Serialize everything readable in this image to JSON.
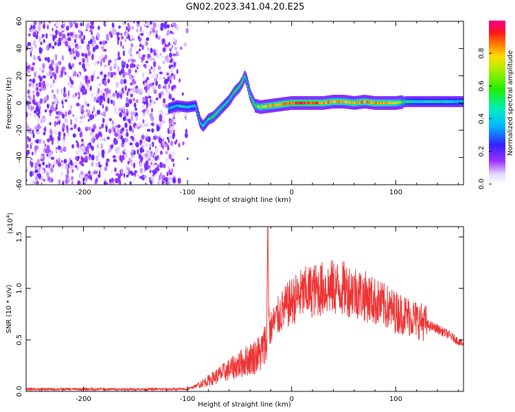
{
  "title": "GN02.2023.341.04.20.E25",
  "chart_data": [
    {
      "type": "heatmap",
      "title": "GN02.2023.341.04.20.E25",
      "xlabel": "Height of straight line (km)",
      "ylabel": "Frequency (Hz)",
      "xlim": [
        -255,
        165
      ],
      "ylim": [
        -60,
        60
      ],
      "xticks": [
        -200,
        -100,
        0,
        100
      ],
      "yticks": [
        -60,
        -40,
        -20,
        0,
        20,
        40,
        60
      ],
      "grid": false,
      "colorbar": {
        "label": "Normalized spectral amplitude",
        "range": [
          0.0,
          1.0
        ],
        "ticks": [
          0.0,
          0.2,
          0.4,
          0.6,
          0.8
        ],
        "colormap": "white-purple-blue-cyan-green-yellow-orange-red-magenta"
      },
      "regions": [
        {
          "description": "broadband noise",
          "x_range": [
            -255,
            -110
          ],
          "freq_range": [
            -60,
            60
          ],
          "amplitude": 0.1
        },
        {
          "description": "signal ridge",
          "x_range": [
            -112,
            165
          ],
          "amplitude": [
            0.3,
            0.95
          ]
        }
      ],
      "ridge": {
        "x": [
          -118,
          -110,
          -100,
          -92,
          -88,
          -85,
          -80,
          -75,
          -70,
          -65,
          -60,
          -55,
          -50,
          -47,
          -45,
          -43,
          -40,
          -35,
          -30,
          -20,
          -10,
          0,
          10,
          20,
          30,
          40,
          50,
          60,
          70,
          80,
          90,
          100,
          110,
          120,
          130,
          140,
          150,
          165
        ],
        "freq": [
          -4,
          -2,
          -3,
          -2,
          -14,
          -17,
          -12,
          -10,
          -6,
          -2,
          2,
          8,
          12,
          16,
          20,
          16,
          6,
          -2,
          -3,
          -2,
          -1,
          0,
          0,
          0,
          0,
          1,
          1,
          0,
          1,
          0,
          0,
          0,
          1,
          1,
          1,
          1,
          1,
          1
        ],
        "amplitude": [
          0.35,
          0.4,
          0.45,
          0.4,
          0.45,
          0.5,
          0.5,
          0.55,
          0.55,
          0.5,
          0.5,
          0.55,
          0.55,
          0.6,
          0.55,
          0.5,
          0.55,
          0.6,
          0.7,
          0.8,
          0.85,
          0.9,
          0.9,
          0.9,
          0.85,
          0.8,
          0.8,
          0.8,
          0.85,
          0.85,
          0.8,
          0.75,
          0.5,
          0.45,
          0.45,
          0.45,
          0.42,
          0.4
        ]
      }
    },
    {
      "type": "line",
      "xlabel": "Height of straight line (km)",
      "ylabel": "SNR (10 * v/v)",
      "y_scale_note": "(x10",
      "y_scale_exp": "4",
      "xlim": [
        -255,
        165
      ],
      "ylim": [
        0.0,
        1.6
      ],
      "xticks": [
        -200,
        -100,
        0,
        100
      ],
      "yticks": [
        0.0,
        0.5,
        1.0,
        1.5
      ],
      "grid": false,
      "series": [
        {
          "color": "#ee3333",
          "x": [
            -255,
            -200,
            -150,
            -100,
            -90,
            -85,
            -80,
            -70,
            -60,
            -50,
            -40,
            -30,
            -24,
            -23,
            -22,
            -21,
            -20,
            -15,
            -10,
            0,
            10,
            20,
            30,
            40,
            50,
            60,
            70,
            80,
            90,
            100,
            110,
            120,
            130,
            140,
            150,
            165
          ],
          "values": [
            0.02,
            0.02,
            0.02,
            0.02,
            0.06,
            0.08,
            0.1,
            0.15,
            0.2,
            0.25,
            0.3,
            0.35,
            0.45,
            1.6,
            0.8,
            0.55,
            0.6,
            0.68,
            0.75,
            0.85,
            0.92,
            0.95,
            0.97,
            0.98,
            0.97,
            0.95,
            0.9,
            0.85,
            0.8,
            0.75,
            0.72,
            0.68,
            0.64,
            0.6,
            0.55,
            0.45
          ]
        }
      ]
    }
  ]
}
